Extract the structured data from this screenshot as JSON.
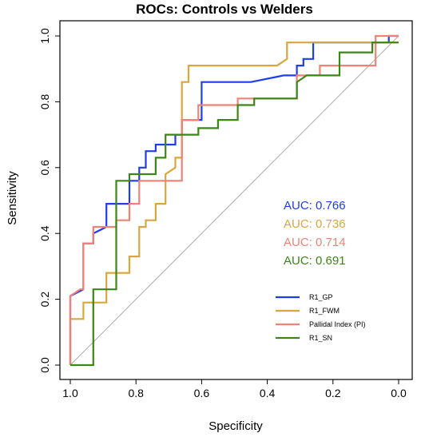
{
  "chart_data": {
    "type": "line",
    "title": "ROCs: Controls vs Welders",
    "xlabel": "Specificity",
    "ylabel": "Sensitivity",
    "xlim": [
      1.0,
      0.0
    ],
    "ylim": [
      0.0,
      1.0
    ],
    "x_reversed": true,
    "grid": false,
    "x_ticks": [
      1.0,
      0.8,
      0.6,
      0.4,
      0.2,
      0.0
    ],
    "x_tick_labels": [
      "1.0",
      "0.8",
      "0.6",
      "0.4",
      "0.2",
      "0.0"
    ],
    "y_ticks": [
      0.0,
      0.2,
      0.4,
      0.6,
      0.8,
      1.0
    ],
    "y_tick_labels": [
      "0.0",
      "0.2",
      "0.4",
      "0.6",
      "0.8",
      "1.0"
    ],
    "reference_line": {
      "from": [
        1.0,
        0.0
      ],
      "to": [
        0.0,
        1.0
      ],
      "color": "#aaaaaa"
    },
    "legend_position": "bottom-right",
    "series": [
      {
        "name": "R1_GP",
        "color": "#1f3cf0",
        "auc_label": "AUC: 0.766",
        "points": [
          [
            1.0,
            0.0
          ],
          [
            1.0,
            0.21
          ],
          [
            0.96,
            0.23
          ],
          [
            0.96,
            0.37
          ],
          [
            0.93,
            0.37
          ],
          [
            0.93,
            0.4
          ],
          [
            0.89,
            0.42
          ],
          [
            0.89,
            0.49
          ],
          [
            0.82,
            0.49
          ],
          [
            0.82,
            0.56
          ],
          [
            0.79,
            0.56
          ],
          [
            0.79,
            0.6
          ],
          [
            0.77,
            0.6
          ],
          [
            0.77,
            0.65
          ],
          [
            0.74,
            0.65
          ],
          [
            0.74,
            0.67
          ],
          [
            0.68,
            0.67
          ],
          [
            0.68,
            0.7
          ],
          [
            0.66,
            0.7
          ],
          [
            0.66,
            0.745
          ],
          [
            0.6,
            0.745
          ],
          [
            0.6,
            0.86
          ],
          [
            0.45,
            0.86
          ],
          [
            0.35,
            0.88
          ],
          [
            0.31,
            0.88
          ],
          [
            0.31,
            0.91
          ],
          [
            0.29,
            0.91
          ],
          [
            0.29,
            0.93
          ],
          [
            0.26,
            0.93
          ],
          [
            0.26,
            0.98
          ],
          [
            0.03,
            0.98
          ],
          [
            0.03,
            1.0
          ],
          [
            0.0,
            1.0
          ]
        ]
      },
      {
        "name": "R1_FWM",
        "color": "#dba63c",
        "auc_label": "AUC: 0.736",
        "points": [
          [
            1.0,
            0.0
          ],
          [
            1.0,
            0.14
          ],
          [
            0.96,
            0.14
          ],
          [
            0.96,
            0.19
          ],
          [
            0.89,
            0.19
          ],
          [
            0.89,
            0.28
          ],
          [
            0.82,
            0.28
          ],
          [
            0.82,
            0.33
          ],
          [
            0.79,
            0.33
          ],
          [
            0.79,
            0.42
          ],
          [
            0.77,
            0.42
          ],
          [
            0.77,
            0.44
          ],
          [
            0.74,
            0.44
          ],
          [
            0.74,
            0.49
          ],
          [
            0.71,
            0.49
          ],
          [
            0.71,
            0.58
          ],
          [
            0.68,
            0.6
          ],
          [
            0.68,
            0.63
          ],
          [
            0.66,
            0.63
          ],
          [
            0.66,
            0.86
          ],
          [
            0.64,
            0.86
          ],
          [
            0.64,
            0.91
          ],
          [
            0.37,
            0.91
          ],
          [
            0.34,
            0.93
          ],
          [
            0.34,
            0.98
          ],
          [
            0.0,
            0.98
          ]
        ]
      },
      {
        "name": "Pallidal Index (PI)",
        "color": "#f08275",
        "auc_label": "AUC: 0.714",
        "points": [
          [
            1.0,
            0.0
          ],
          [
            1.0,
            0.21
          ],
          [
            0.97,
            0.23
          ],
          [
            0.96,
            0.23
          ],
          [
            0.96,
            0.37
          ],
          [
            0.93,
            0.37
          ],
          [
            0.93,
            0.42
          ],
          [
            0.86,
            0.42
          ],
          [
            0.86,
            0.44
          ],
          [
            0.82,
            0.44
          ],
          [
            0.82,
            0.49
          ],
          [
            0.79,
            0.49
          ],
          [
            0.79,
            0.56
          ],
          [
            0.66,
            0.56
          ],
          [
            0.66,
            0.745
          ],
          [
            0.61,
            0.745
          ],
          [
            0.61,
            0.79
          ],
          [
            0.49,
            0.79
          ],
          [
            0.49,
            0.81
          ],
          [
            0.31,
            0.81
          ],
          [
            0.31,
            0.88
          ],
          [
            0.24,
            0.88
          ],
          [
            0.24,
            0.91
          ],
          [
            0.07,
            0.91
          ],
          [
            0.07,
            1.0
          ],
          [
            0.0,
            1.0
          ]
        ]
      },
      {
        "name": "R1_SN",
        "color": "#3d8519",
        "auc_label": "AUC: 0.691",
        "points": [
          [
            1.0,
            0.0
          ],
          [
            0.93,
            0.0
          ],
          [
            0.93,
            0.23
          ],
          [
            0.86,
            0.23
          ],
          [
            0.86,
            0.56
          ],
          [
            0.82,
            0.56
          ],
          [
            0.82,
            0.58
          ],
          [
            0.74,
            0.58
          ],
          [
            0.74,
            0.63
          ],
          [
            0.71,
            0.63
          ],
          [
            0.71,
            0.7
          ],
          [
            0.61,
            0.7
          ],
          [
            0.61,
            0.72
          ],
          [
            0.55,
            0.72
          ],
          [
            0.55,
            0.745
          ],
          [
            0.49,
            0.745
          ],
          [
            0.49,
            0.79
          ],
          [
            0.44,
            0.79
          ],
          [
            0.44,
            0.81
          ],
          [
            0.31,
            0.81
          ],
          [
            0.31,
            0.86
          ],
          [
            0.28,
            0.88
          ],
          [
            0.18,
            0.88
          ],
          [
            0.18,
            0.95
          ],
          [
            0.08,
            0.95
          ],
          [
            0.08,
            0.98
          ],
          [
            0.0,
            0.98
          ]
        ]
      }
    ]
  }
}
